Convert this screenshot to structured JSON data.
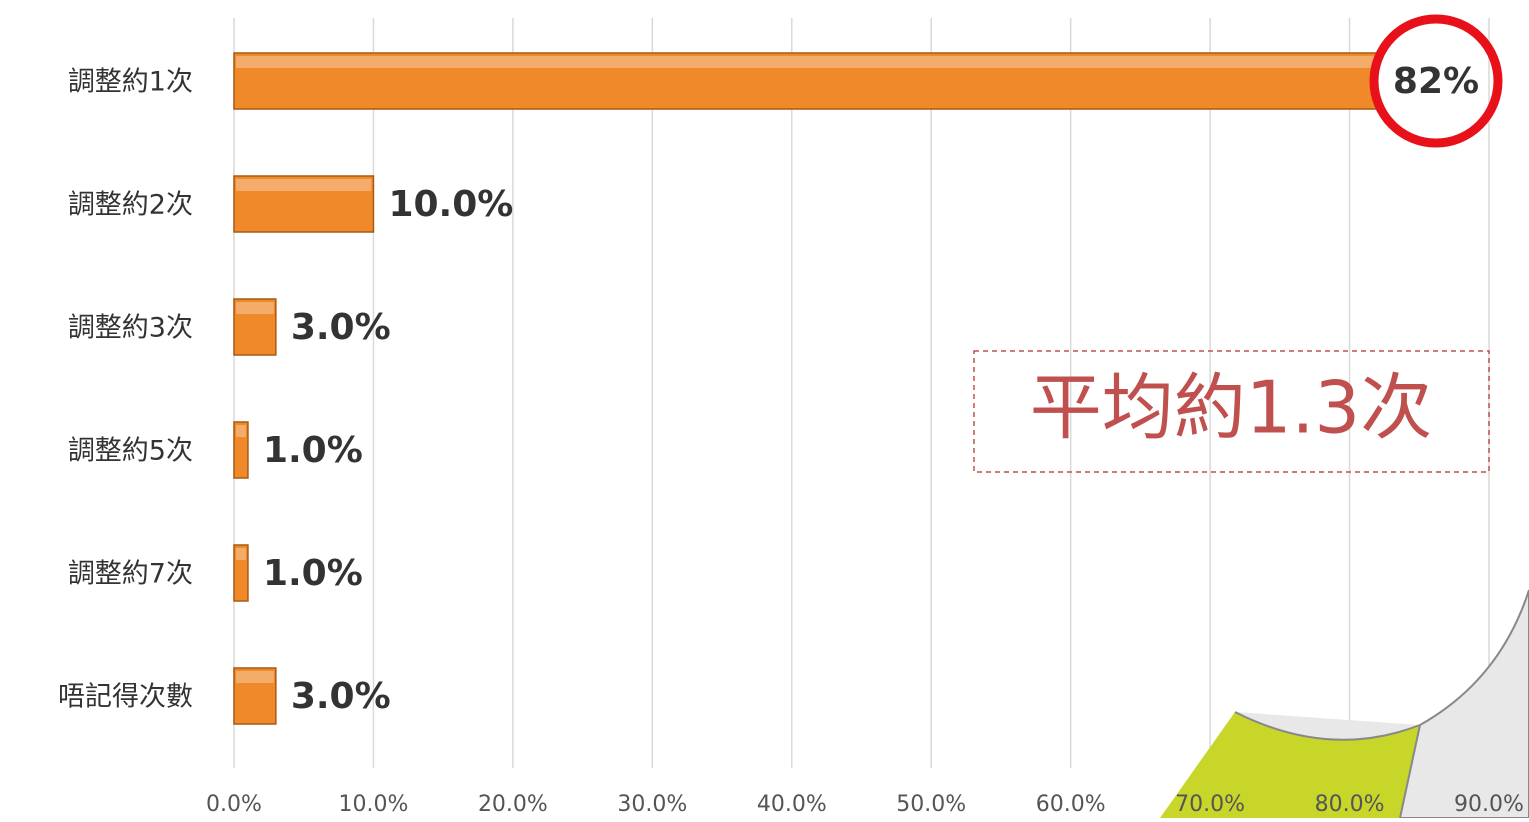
{
  "chart_data": {
    "type": "barh",
    "categories": [
      "調整約1次",
      "調整約2次",
      "調整約3次",
      "調整約5次",
      "調整約7次",
      "唔記得次數"
    ],
    "values": [
      82,
      10,
      3,
      1,
      1,
      3
    ],
    "value_labels": [
      "82%",
      "10.0%",
      "3.0%",
      "1.0%",
      "1.0%",
      "3.0%"
    ],
    "color": "#f0892a",
    "xlim": [
      0,
      90
    ],
    "xticks": [
      {
        "value": 0,
        "label": "0.0%"
      },
      {
        "value": 10,
        "label": "10.0%"
      },
      {
        "value": 20,
        "label": "20.0%"
      },
      {
        "value": 30,
        "label": "30.0%"
      },
      {
        "value": 40,
        "label": "40.0%"
      },
      {
        "value": 50,
        "label": "50.0%"
      },
      {
        "value": 60,
        "label": "60.0%"
      },
      {
        "value": 70,
        "label": "70.0%"
      },
      {
        "value": 80,
        "label": "80.0%"
      },
      {
        "value": 90,
        "label": "90.0%"
      }
    ],
    "grid": true,
    "annotation": "平均約1.3次"
  }
}
